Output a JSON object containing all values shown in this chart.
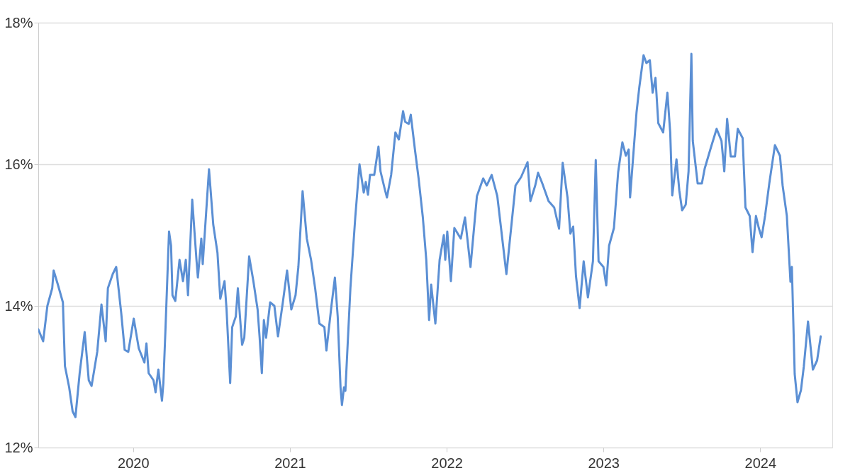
{
  "chart_data": {
    "type": "line",
    "x": [
      2019.395,
      2019.426,
      2019.453,
      2019.484,
      2019.493,
      2019.52,
      2019.552,
      2019.565,
      2019.592,
      2019.614,
      2019.632,
      2019.659,
      2019.691,
      2019.717,
      2019.735,
      2019.771,
      2019.798,
      2019.825,
      2019.839,
      2019.87,
      2019.892,
      2019.924,
      2019.946,
      2019.969,
      2020.004,
      2020.036,
      2020.072,
      2020.085,
      2020.099,
      2020.13,
      2020.143,
      2020.161,
      2020.184,
      2020.193,
      2020.206,
      2020.229,
      2020.242,
      2020.251,
      2020.269,
      2020.296,
      2020.318,
      2020.336,
      2020.35,
      2020.377,
      2020.404,
      2020.413,
      2020.435,
      2020.444,
      2020.484,
      2020.511,
      2020.538,
      2020.556,
      2020.583,
      2020.596,
      2020.619,
      2020.632,
      2020.655,
      2020.668,
      2020.695,
      2020.709,
      2020.74,
      2020.767,
      2020.794,
      2020.807,
      2020.821,
      2020.834,
      2020.848,
      2020.874,
      2020.901,
      2020.924,
      2020.955,
      2020.982,
      2021.009,
      2021.036,
      2021.054,
      2021.081,
      2021.108,
      2021.135,
      2021.161,
      2021.188,
      2021.22,
      2021.233,
      2021.265,
      2021.287,
      2021.305,
      2021.323,
      2021.332,
      2021.345,
      2021.354,
      2021.386,
      2021.417,
      2021.444,
      2021.471,
      2021.484,
      2021.498,
      2021.511,
      2021.538,
      2021.565,
      2021.578,
      2021.605,
      2021.619,
      2021.646,
      2021.673,
      2021.695,
      2021.722,
      2021.735,
      2021.758,
      2021.771,
      2021.798,
      2021.821,
      2021.848,
      2021.87,
      2021.888,
      2021.901,
      2021.928,
      2021.955,
      2021.982,
      2021.991,
      2022.004,
      2022.027,
      2022.049,
      2022.09,
      2022.117,
      2022.152,
      2022.193,
      2022.233,
      2022.256,
      2022.287,
      2022.323,
      2022.381,
      2022.439,
      2022.475,
      2022.516,
      2022.534,
      2022.565,
      2022.583,
      2022.61,
      2022.65,
      2022.686,
      2022.717,
      2022.74,
      2022.771,
      2022.789,
      2022.807,
      2022.825,
      2022.848,
      2022.874,
      2022.901,
      2022.933,
      2022.951,
      2022.969,
      2023.0,
      2023.018,
      2023.036,
      2023.067,
      2023.094,
      2023.121,
      2023.143,
      2023.161,
      2023.17,
      2023.211,
      2023.229,
      2023.256,
      2023.274,
      2023.296,
      2023.314,
      2023.332,
      2023.35,
      2023.381,
      2023.408,
      2023.426,
      2023.439,
      2023.466,
      2023.484,
      2023.502,
      2023.525,
      2023.543,
      2023.561,
      2023.57,
      2023.601,
      2023.628,
      2023.646,
      2023.686,
      2023.722,
      2023.753,
      2023.771,
      2023.789,
      2023.812,
      2023.839,
      2023.857,
      2023.888,
      2023.906,
      2023.933,
      2023.951,
      2023.973,
      2023.991,
      2024.009,
      2024.031,
      2024.058,
      2024.094,
      2024.126,
      2024.143,
      2024.17,
      2024.193,
      2024.202,
      2024.22,
      2024.238,
      2024.26,
      2024.278,
      2024.305,
      2024.336,
      2024.363,
      2024.386
    ],
    "series": [
      {
        "color": "#5b8fd4",
        "values": [
          13.67,
          13.5,
          14.0,
          14.25,
          14.5,
          14.3,
          14.05,
          13.15,
          12.85,
          12.51,
          12.43,
          13.05,
          13.63,
          12.95,
          12.87,
          13.35,
          14.02,
          13.5,
          14.25,
          14.45,
          14.55,
          13.9,
          13.38,
          13.35,
          13.82,
          13.4,
          13.2,
          13.47,
          13.05,
          12.95,
          12.78,
          13.1,
          12.66,
          12.91,
          13.65,
          15.05,
          14.85,
          14.15,
          14.07,
          14.65,
          14.35,
          14.65,
          14.15,
          15.5,
          14.65,
          14.4,
          14.95,
          14.59,
          15.93,
          15.15,
          14.75,
          14.1,
          14.35,
          13.95,
          12.91,
          13.7,
          13.85,
          14.25,
          13.45,
          13.55,
          14.7,
          14.35,
          13.95,
          13.55,
          13.05,
          13.8,
          13.55,
          14.05,
          14.0,
          13.57,
          14.05,
          14.5,
          13.95,
          14.15,
          14.55,
          15.62,
          14.95,
          14.65,
          14.25,
          13.75,
          13.7,
          13.37,
          14.0,
          14.4,
          13.85,
          12.85,
          12.6,
          12.85,
          12.8,
          14.25,
          15.25,
          16.0,
          15.6,
          15.75,
          15.57,
          15.85,
          15.85,
          16.25,
          15.9,
          15.65,
          15.53,
          15.85,
          16.45,
          16.35,
          16.75,
          16.6,
          16.57,
          16.7,
          16.2,
          15.8,
          15.25,
          14.65,
          13.8,
          14.3,
          13.75,
          14.65,
          15.0,
          14.65,
          15.05,
          14.35,
          15.1,
          14.95,
          15.25,
          14.55,
          15.55,
          15.8,
          15.7,
          15.85,
          15.55,
          14.45,
          15.7,
          15.82,
          16.03,
          15.48,
          15.7,
          15.88,
          15.73,
          15.48,
          15.39,
          15.09,
          16.02,
          15.53,
          15.02,
          15.12,
          14.42,
          13.97,
          14.63,
          14.12,
          14.63,
          16.06,
          14.63,
          14.55,
          14.29,
          14.85,
          15.1,
          15.89,
          16.31,
          16.12,
          16.21,
          15.53,
          16.73,
          17.09,
          17.54,
          17.43,
          17.47,
          17.01,
          17.22,
          16.58,
          16.45,
          17.01,
          16.45,
          15.56,
          16.07,
          15.63,
          15.35,
          15.43,
          15.9,
          17.56,
          16.33,
          15.73,
          15.73,
          15.94,
          16.24,
          16.5,
          16.33,
          15.9,
          16.64,
          16.11,
          16.11,
          16.5,
          16.37,
          15.39,
          15.27,
          14.76,
          15.27,
          15.1,
          14.97,
          15.27,
          15.73,
          16.27,
          16.12,
          15.7,
          15.27,
          14.34,
          14.55,
          13.04,
          12.64,
          12.81,
          13.14,
          13.78,
          13.1,
          13.23,
          13.57
        ]
      }
    ],
    "xlim": [
      2019.395,
      2024.46
    ],
    "xticks": [
      2020,
      2021,
      2022,
      2023,
      2024
    ],
    "ylim": [
      12,
      18
    ],
    "yticks": [
      {
        "value": 12,
        "label": "12%"
      },
      {
        "value": 14,
        "label": "14%"
      },
      {
        "value": 16,
        "label": "16%"
      },
      {
        "value": 18,
        "label": "18%"
      }
    ],
    "grid": "y",
    "line_style": "solid",
    "marker": "none"
  }
}
